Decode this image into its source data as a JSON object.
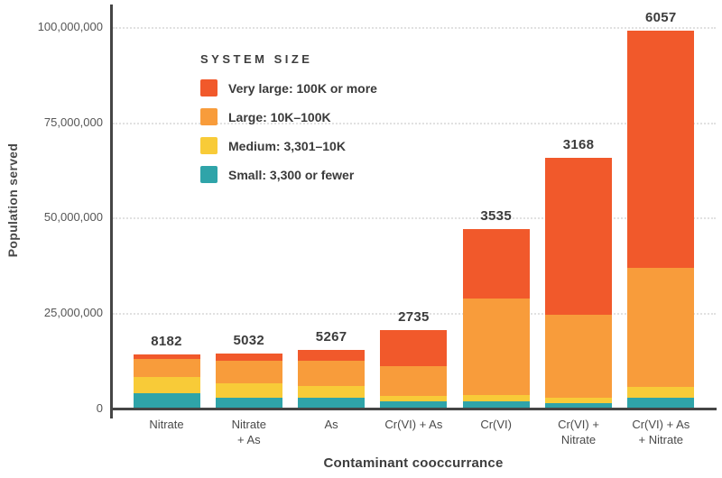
{
  "chart_data": {
    "type": "bar",
    "stacked": true,
    "xlabel": "Contaminant cooccurrance",
    "ylabel": "Population served",
    "categories": [
      "Nitrate",
      "Nitrate + As",
      "As",
      "Cr(VI) + As",
      "Cr(VI)",
      "Cr(VI) + Nitrate",
      "Cr(VI) + As + Nitrate"
    ],
    "category_display": [
      "Nitrate",
      "Nitrate\n+ As",
      "As",
      "Cr(VI) + As",
      "Cr(VI)",
      "Cr(VI) +\nNitrate",
      "Cr(VI) + As\n+ Nitrate"
    ],
    "bar_labels": [
      "8182",
      "5032",
      "5267",
      "2735",
      "3535",
      "3168",
      "6057"
    ],
    "series": [
      {
        "name": "Very large: 100K or more",
        "color": "#F1592B",
        "values_millions": [
          1.2,
          1.9,
          2.8,
          9.5,
          18.4,
          41.1,
          62.2
        ]
      },
      {
        "name": "Large: 10K–100K",
        "color": "#F89C3B",
        "values_millions": [
          4.7,
          5.9,
          6.8,
          7.8,
          25.3,
          22.0,
          31.3
        ]
      },
      {
        "name": "Medium: 3,301–10K",
        "color": "#F8CB38",
        "values_millions": [
          4.1,
          3.8,
          3.1,
          1.4,
          1.7,
          1.2,
          2.7
        ]
      },
      {
        "name": "Small: 3,300 or fewer",
        "color": "#2FA4A9",
        "values_millions": [
          4.0,
          2.8,
          2.6,
          1.7,
          1.7,
          1.4,
          2.8
        ]
      }
    ],
    "stack_note": "series listed top-to-bottom of each stacked bar; legend shown in same order",
    "legend": {
      "title": "SYSTEM SIZE",
      "position": "top-left-inside"
    },
    "y_axis": {
      "tick_labels": [
        "0",
        "25,000,000",
        "50,000,000",
        "75,000,000",
        "100,000,000"
      ],
      "tick_values_millions": [
        0,
        25,
        50,
        75,
        100
      ]
    },
    "ylim_millions": [
      0,
      106
    ],
    "grid": "dotted horizontal lines at y ticks",
    "units": "persons"
  },
  "colors": {
    "axis": "#454545",
    "grid": "#e1e1e1",
    "label_text": "#3c3c3c",
    "tick_text": "#565656",
    "background": "#ffffff"
  }
}
